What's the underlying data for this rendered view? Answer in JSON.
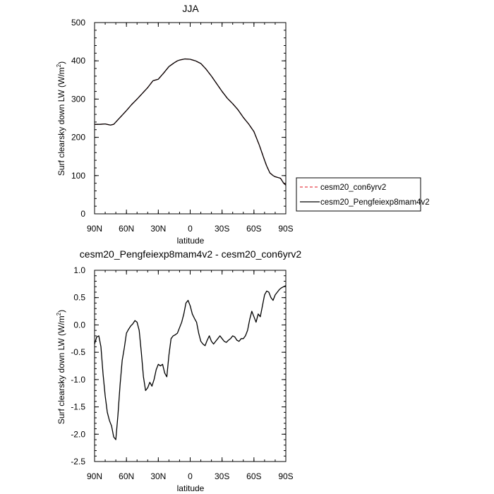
{
  "chart_data": [
    {
      "type": "line",
      "title": "JJA",
      "xlabel": "latitude",
      "ylabel_main": "Surf clearsky down LW (W/m",
      "ylabel_sup": "2",
      "ylabel_close": ")",
      "xlim": [
        90,
        -90
      ],
      "ylim": [
        0,
        500
      ],
      "xticks": [
        {
          "value": 90,
          "label": "90N"
        },
        {
          "value": 60,
          "label": "60N"
        },
        {
          "value": 30,
          "label": "30N"
        },
        {
          "value": 0,
          "label": "0"
        },
        {
          "value": -30,
          "label": "30S"
        },
        {
          "value": -60,
          "label": "60S"
        },
        {
          "value": -90,
          "label": "90S"
        }
      ],
      "yticks": [
        {
          "value": 0,
          "label": "0"
        },
        {
          "value": 100,
          "label": "100"
        },
        {
          "value": 200,
          "label": "200"
        },
        {
          "value": 300,
          "label": "300"
        },
        {
          "value": 400,
          "label": "400"
        },
        {
          "value": 500,
          "label": "500"
        }
      ],
      "legend_position": "right",
      "series": [
        {
          "name": "cesm20_con6yrv2",
          "color": "#e8404a",
          "dash": "dashed",
          "x": [
            90,
            85,
            80,
            75,
            72,
            70,
            65,
            60,
            55,
            50,
            45,
            40,
            35,
            30,
            25,
            20,
            15,
            12,
            10,
            5,
            0,
            -5,
            -10,
            -15,
            -20,
            -25,
            -30,
            -35,
            -40,
            -45,
            -50,
            -55,
            -60,
            -65,
            -70,
            -72,
            -75,
            -78,
            -80,
            -85,
            -88,
            -90
          ],
          "y": [
            234,
            234,
            235,
            232,
            234,
            240,
            255,
            270,
            286,
            300,
            315,
            330,
            348,
            352,
            368,
            385,
            395,
            400,
            402,
            405,
            404,
            400,
            393,
            378,
            360,
            340,
            320,
            302,
            288,
            272,
            252,
            235,
            215,
            180,
            140,
            125,
            107,
            100,
            97,
            93,
            80,
            75
          ]
        },
        {
          "name": "cesm20_Pengfeiexp8mam4v2",
          "color": "#000000",
          "dash": "solid",
          "x": [
            90,
            85,
            80,
            75,
            72,
            70,
            65,
            60,
            55,
            50,
            45,
            40,
            35,
            30,
            25,
            20,
            15,
            12,
            10,
            5,
            0,
            -5,
            -10,
            -15,
            -20,
            -25,
            -30,
            -35,
            -40,
            -45,
            -50,
            -55,
            -60,
            -65,
            -70,
            -72,
            -75,
            -78,
            -80,
            -85,
            -88,
            -90
          ],
          "y": [
            234,
            234,
            235,
            232,
            234,
            240,
            255,
            270,
            286,
            300,
            315,
            330,
            348,
            352,
            368,
            385,
            395,
            400,
            402,
            405,
            404,
            400,
            393,
            378,
            360,
            340,
            320,
            302,
            288,
            272,
            252,
            235,
            215,
            180,
            140,
            125,
            107,
            100,
            97,
            93,
            80,
            75
          ]
        }
      ]
    },
    {
      "type": "line",
      "title": "cesm20_Pengfeiexp8mam4v2 - cesm20_con6yrv2",
      "xlabel": "latitude",
      "ylabel_main": "Surf clearsky down LW (W/m",
      "ylabel_sup": "2",
      "ylabel_close": ")",
      "xlim": [
        90,
        -90
      ],
      "ylim": [
        -2.5,
        1.0
      ],
      "xticks": [
        {
          "value": 90,
          "label": "90N"
        },
        {
          "value": 60,
          "label": "60N"
        },
        {
          "value": 30,
          "label": "30N"
        },
        {
          "value": 0,
          "label": "0"
        },
        {
          "value": -30,
          "label": "30S"
        },
        {
          "value": -60,
          "label": "60S"
        },
        {
          "value": -90,
          "label": "90S"
        }
      ],
      "yticks": [
        {
          "value": -2.5,
          "label": "-2.5"
        },
        {
          "value": -2.0,
          "label": "-2.0"
        },
        {
          "value": -1.5,
          "label": "-1.5"
        },
        {
          "value": -1.0,
          "label": "-1.0"
        },
        {
          "value": -0.5,
          "label": "-0.5"
        },
        {
          "value": 0.0,
          "label": "0.0"
        },
        {
          "value": 0.5,
          "label": "0.5"
        },
        {
          "value": 1.0,
          "label": "1.0"
        }
      ],
      "series": [
        {
          "name": "",
          "color": "#000000",
          "dash": "solid",
          "x": [
            90,
            88,
            86,
            84,
            82,
            80,
            78,
            76,
            74,
            72,
            70,
            68,
            66,
            64,
            62,
            60,
            58,
            56,
            54,
            52,
            50,
            48,
            46,
            44,
            42,
            40,
            38,
            36,
            34,
            32,
            30,
            28,
            26,
            24,
            22,
            20,
            18,
            16,
            14,
            12,
            10,
            8,
            6,
            4,
            2,
            0,
            -2,
            -4,
            -6,
            -8,
            -10,
            -12,
            -14,
            -16,
            -18,
            -20,
            -22,
            -24,
            -26,
            -28,
            -30,
            -32,
            -34,
            -36,
            -38,
            -40,
            -42,
            -44,
            -46,
            -48,
            -50,
            -52,
            -54,
            -56,
            -58,
            -60,
            -62,
            -64,
            -66,
            -68,
            -70,
            -72,
            -74,
            -76,
            -78,
            -80,
            -82,
            -84,
            -86,
            -88,
            -90
          ],
          "y": [
            -0.35,
            -0.22,
            -0.2,
            -0.4,
            -0.9,
            -1.3,
            -1.6,
            -1.75,
            -1.85,
            -2.05,
            -2.1,
            -1.65,
            -1.1,
            -0.65,
            -0.42,
            -0.15,
            -0.08,
            -0.02,
            0.02,
            0.08,
            0.05,
            -0.1,
            -0.5,
            -0.95,
            -1.2,
            -1.15,
            -1.05,
            -1.12,
            -1.0,
            -0.82,
            -0.72,
            -0.75,
            -0.72,
            -0.88,
            -0.95,
            -0.55,
            -0.25,
            -0.2,
            -0.18,
            -0.15,
            -0.05,
            0.05,
            0.2,
            0.4,
            0.45,
            0.35,
            0.2,
            0.12,
            0.05,
            -0.15,
            -0.3,
            -0.35,
            -0.38,
            -0.28,
            -0.2,
            -0.3,
            -0.35,
            -0.3,
            -0.25,
            -0.2,
            -0.25,
            -0.3,
            -0.32,
            -0.28,
            -0.25,
            -0.2,
            -0.22,
            -0.28,
            -0.3,
            -0.25,
            -0.25,
            -0.2,
            -0.1,
            0.1,
            0.25,
            0.15,
            0.05,
            0.2,
            0.15,
            0.35,
            0.55,
            0.62,
            0.6,
            0.5,
            0.45,
            0.55,
            0.6,
            0.65,
            0.68,
            0.7,
            0.72
          ]
        }
      ]
    }
  ]
}
